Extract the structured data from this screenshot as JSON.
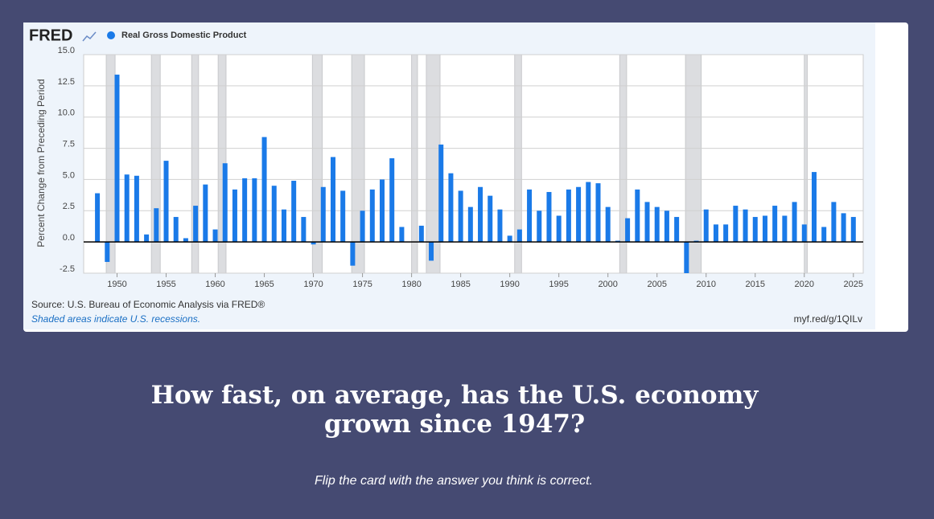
{
  "page": {
    "heading": "How fast, on average, has the U.S. economy grown since 1947?",
    "instruction": "Flip the card with the answer you think is correct."
  },
  "chart_data": {
    "type": "bar",
    "logo": "FRED",
    "ylabel": "Percent Change from Preceding Period",
    "source": "Source: U.S. Bureau of Economic Analysis via FRED®",
    "note": "Shaded areas indicate U.S. recessions.",
    "link": "myf.red/g/1QILv",
    "series": [
      {
        "name": "Real Gross Domestic Product",
        "color": "#1a7ae8",
        "values": [
          3.9,
          -1.6,
          13.4,
          5.4,
          5.3,
          0.6,
          2.7,
          6.5,
          2.0,
          0.3,
          2.9,
          4.6,
          1.0,
          6.3,
          4.2,
          5.1,
          5.1,
          8.4,
          4.5,
          2.6,
          4.9,
          2.0,
          -0.2,
          4.4,
          6.8,
          4.1,
          -1.9,
          2.5,
          4.2,
          5.0,
          6.7,
          1.2,
          0.0,
          1.3,
          -1.5,
          7.8,
          5.5,
          4.1,
          2.8,
          4.4,
          3.7,
          2.6,
          0.5,
          1.0,
          4.2,
          2.5,
          4.0,
          2.1,
          4.2,
          4.4,
          4.8,
          4.7,
          2.8,
          0.1,
          1.9,
          4.2,
          3.2,
          2.8,
          2.5,
          2.0,
          -2.5,
          0.1,
          2.6,
          1.4,
          1.4,
          2.9,
          2.6,
          2.0,
          2.1,
          2.9,
          2.1,
          3.2,
          1.4,
          5.6,
          1.2,
          3.2,
          2.3,
          2.0
        ]
      }
    ],
    "x": [
      1948,
      1949,
      1950,
      1951,
      1952,
      1953,
      1954,
      1955,
      1956,
      1957,
      1958,
      1959,
      1960,
      1961,
      1962,
      1963,
      1964,
      1965,
      1966,
      1967,
      1968,
      1969,
      1970,
      1971,
      1972,
      1973,
      1974,
      1975,
      1976,
      1977,
      1978,
      1979,
      1980,
      1981,
      1982,
      1983,
      1984,
      1985,
      1986,
      1987,
      1988,
      1989,
      1990,
      1991,
      1992,
      1993,
      1994,
      1995,
      1996,
      1997,
      1998,
      1999,
      2000,
      2001,
      2002,
      2003,
      2004,
      2005,
      2006,
      2007,
      2008,
      2009,
      2010,
      2011,
      2012,
      2013,
      2014,
      2015,
      2016,
      2017,
      2018,
      2019,
      2020,
      2021,
      2022,
      2023,
      2024,
      2025
    ],
    "recessions": [
      [
        1948.9,
        1949.8
      ],
      [
        1953.5,
        1954.4
      ],
      [
        1957.6,
        1958.3
      ],
      [
        1960.3,
        1961.1
      ],
      [
        1969.9,
        1970.9
      ],
      [
        1973.9,
        1975.2
      ],
      [
        1980.0,
        1980.6
      ],
      [
        1981.5,
        1982.9
      ],
      [
        1990.5,
        1991.2
      ],
      [
        2001.2,
        2001.9
      ],
      [
        2007.9,
        2009.5
      ],
      [
        2020.0,
        2020.3
      ]
    ],
    "xlim": [
      1946.6,
      2026
    ],
    "xticks": [
      1950,
      1955,
      1960,
      1965,
      1970,
      1975,
      1980,
      1985,
      1990,
      1995,
      2000,
      2005,
      2010,
      2015,
      2020,
      2025
    ],
    "ylim": [
      -2.5,
      15
    ],
    "yticks": [
      {
        "value": -2.5,
        "label": "-2.5"
      },
      {
        "value": 0,
        "label": "0.0"
      },
      {
        "value": 2.5,
        "label": "2.5"
      },
      {
        "value": 5,
        "label": "5.0"
      },
      {
        "value": 7.5,
        "label": "7.5"
      },
      {
        "value": 10,
        "label": "10.0"
      },
      {
        "value": 12.5,
        "label": "12.5"
      },
      {
        "value": 15,
        "label": "15.0"
      }
    ],
    "grid": true
  }
}
